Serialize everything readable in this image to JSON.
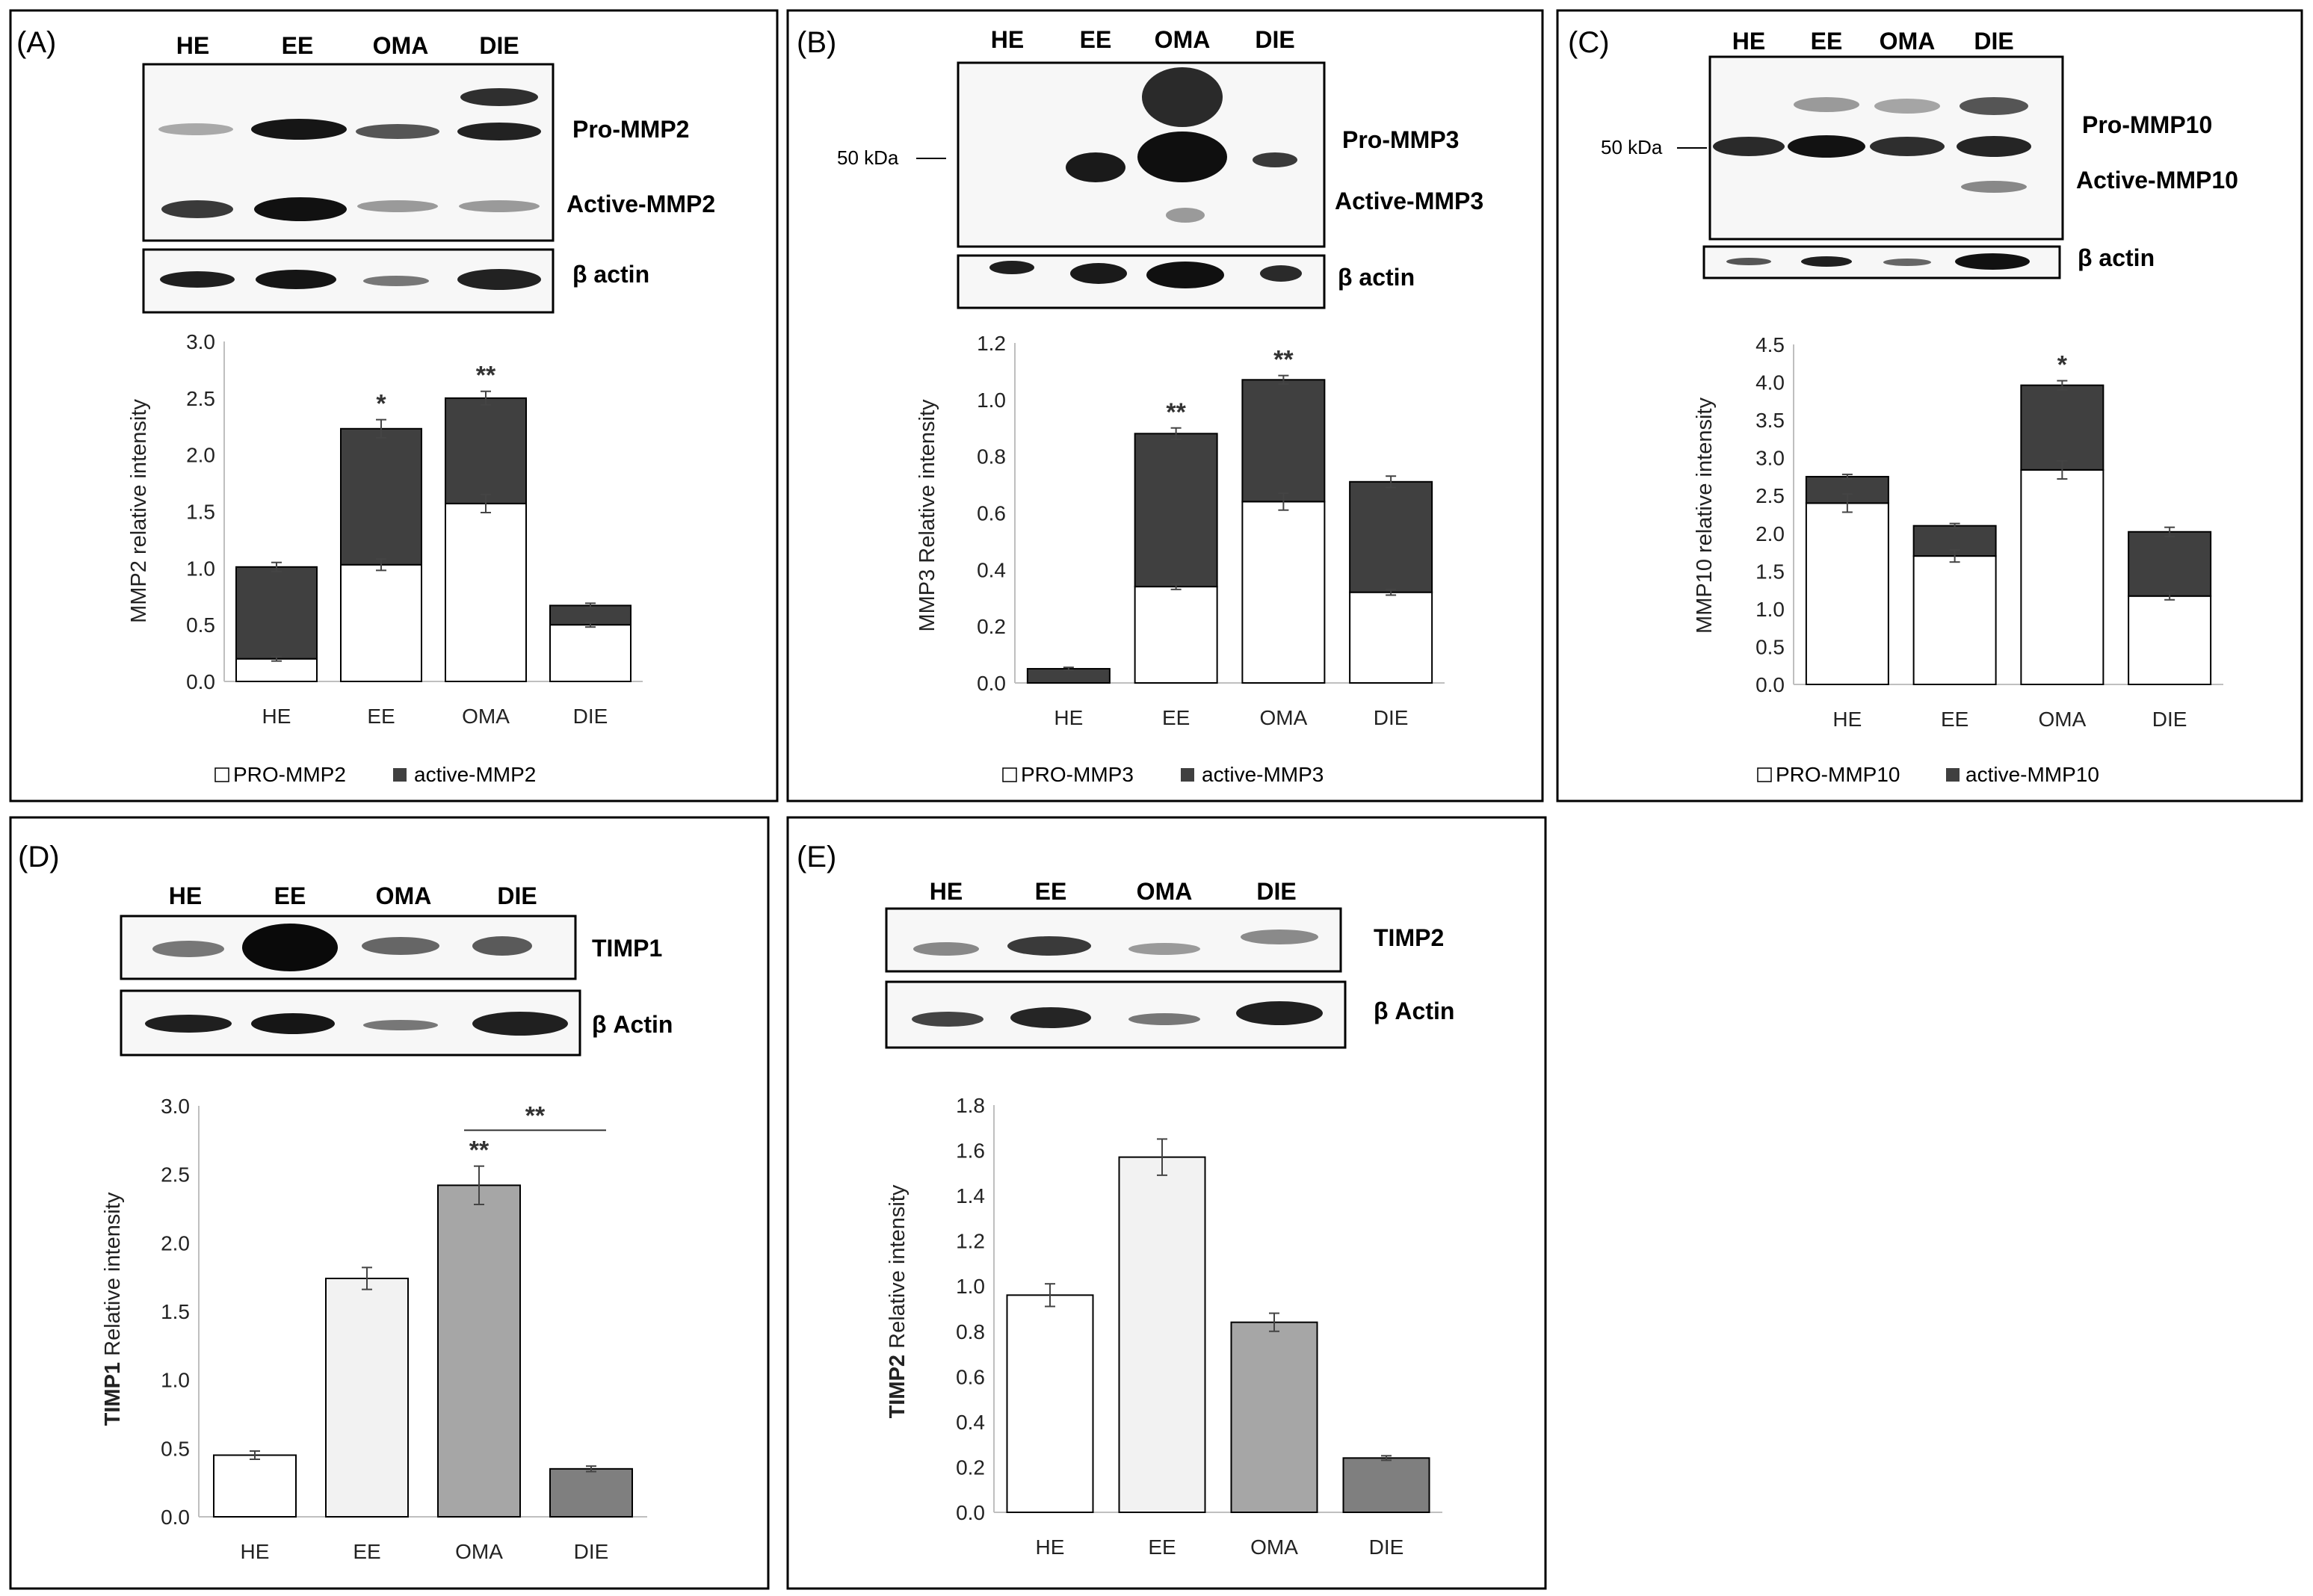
{
  "panels": [
    {
      "label": "(A)",
      "blot": {
        "lanes": [
          "HE",
          "EE",
          "OMA",
          "DIE"
        ],
        "band_labels": [
          "Pro-MMP2",
          "Active-MMP2"
        ],
        "loading_label": "β actin"
      },
      "legend": [
        "PRO-MMP2",
        "active-MMP2"
      ],
      "chart_data": {
        "type": "bar",
        "stacked": true,
        "categories": [
          "HE",
          "EE",
          "OMA",
          "DIE"
        ],
        "ylabel": "MMP2 relative intensity",
        "ylim": [
          0,
          3.0
        ],
        "yticks": [
          "0.0",
          "0.5",
          "1.0",
          "1.5",
          "2.0",
          "2.5",
          "3.0"
        ],
        "series": [
          {
            "name": "PRO-MMP2",
            "values": [
              0.2,
              1.03,
              1.57,
              0.5
            ],
            "errors": [
              0.02,
              0.05,
              0.08,
              0.02
            ],
            "color": "#ffffff"
          },
          {
            "name": "active-MMP2",
            "values": [
              0.81,
              1.2,
              0.93,
              0.17
            ],
            "errors": [
              0.04,
              0.08,
              0.06,
              0.02
            ],
            "color": "#404040"
          }
        ],
        "annotations": [
          "",
          "*",
          "**",
          ""
        ]
      }
    },
    {
      "label": "(B)",
      "blot": {
        "lanes": [
          "HE",
          "EE",
          "OMA",
          "DIE"
        ],
        "band_labels": [
          "Pro-MMP3",
          "Active-MMP3"
        ],
        "loading_label": "β actin",
        "marker": "50 kDa"
      },
      "legend": [
        "PRO-MMP3",
        "active-MMP3"
      ],
      "chart_data": {
        "type": "bar",
        "stacked": true,
        "categories": [
          "HE",
          "EE",
          "OMA",
          "DIE"
        ],
        "ylabel": "MMP3 Relative intensity",
        "ylim": [
          0,
          1.2
        ],
        "yticks": [
          "0.0",
          "0.2",
          "0.4",
          "0.6",
          "0.8",
          "1.0",
          "1.2"
        ],
        "series": [
          {
            "name": "PRO-MMP3",
            "values": [
              0,
              0.34,
              0.64,
              0.32
            ],
            "errors": [
              0,
              0.01,
              0.03,
              0.01
            ],
            "color": "#ffffff"
          },
          {
            "name": "active-MMP3",
            "values": [
              0.05,
              0.54,
              0.43,
              0.39
            ],
            "errors": [
              0.005,
              0.02,
              0.015,
              0.02
            ],
            "color": "#404040"
          }
        ],
        "annotations": [
          "",
          "**",
          "**",
          ""
        ]
      }
    },
    {
      "label": "(C)",
      "blot": {
        "lanes": [
          "HE",
          "EE",
          "OMA",
          "DIE"
        ],
        "band_labels": [
          "Pro-MMP10",
          "Active-MMP10"
        ],
        "loading_label": "β actin",
        "marker": "50 kDa"
      },
      "legend": [
        "PRO-MMP10",
        "active-MMP10"
      ],
      "chart_data": {
        "type": "bar",
        "stacked": true,
        "categories": [
          "HE",
          "EE",
          "OMA",
          "DIE"
        ],
        "ylabel": "MMP10 relative intensity",
        "ylim": [
          0,
          4.5
        ],
        "yticks": [
          "0.0",
          "0.5",
          "1.0",
          "1.5",
          "2.0",
          "2.5",
          "3.0",
          "3.5",
          "4.0",
          "4.5"
        ],
        "series": [
          {
            "name": "PRO-MMP10",
            "values": [
              2.4,
              1.7,
              2.84,
              1.17
            ],
            "errors": [
              0.12,
              0.08,
              0.12,
              0.05
            ],
            "color": "#ffffff"
          },
          {
            "name": "active-MMP10",
            "values": [
              0.35,
              0.4,
              1.12,
              0.85
            ],
            "errors": [
              0.03,
              0.03,
              0.06,
              0.06
            ],
            "color": "#404040"
          }
        ],
        "annotations": [
          "",
          "",
          "*",
          ""
        ]
      }
    },
    {
      "label": "(D)",
      "blot": {
        "lanes": [
          "HE",
          "EE",
          "OMA",
          "DIE"
        ],
        "band_labels": [
          "TIMP1"
        ],
        "loading_label": "β Actin"
      },
      "legend": [],
      "chart_data": {
        "type": "bar",
        "stacked": false,
        "categories": [
          "HE",
          "EE",
          "OMA",
          "DIE"
        ],
        "ylabel_bold": "TIMP1",
        "ylabel": "Relative intensity",
        "ylim": [
          0,
          3.0
        ],
        "yticks": [
          "0.0",
          "0.5",
          "1.0",
          "1.5",
          "2.0",
          "2.5",
          "3.0"
        ],
        "values": [
          0.45,
          1.74,
          2.42,
          0.35
        ],
        "errors": [
          0.03,
          0.08,
          0.14,
          0.02
        ],
        "colors": [
          "#ffffff",
          "#f2f2f2",
          "#a6a6a6",
          "#7f7f7f"
        ],
        "annotations": [
          "",
          "",
          "**",
          ""
        ],
        "bracket": {
          "from": "OMA",
          "to": "DIE",
          "label": "**"
        }
      }
    },
    {
      "label": "(E)",
      "blot": {
        "lanes": [
          "HE",
          "EE",
          "OMA",
          "DIE"
        ],
        "band_labels": [
          "TIMP2"
        ],
        "loading_label": "β Actin"
      },
      "legend": [],
      "chart_data": {
        "type": "bar",
        "stacked": false,
        "categories": [
          "HE",
          "EE",
          "OMA",
          "DIE"
        ],
        "ylabel_bold": "TIMP2",
        "ylabel": "Relative intensity",
        "ylim": [
          0,
          1.8
        ],
        "yticks": [
          "0.0",
          "0.2",
          "0.4",
          "0.6",
          "0.8",
          "1.0",
          "1.2",
          "1.4",
          "1.6",
          "1.8"
        ],
        "values": [
          0.96,
          1.57,
          0.84,
          0.24
        ],
        "errors": [
          0.05,
          0.08,
          0.04,
          0.01
        ],
        "colors": [
          "#ffffff",
          "#f2f2f2",
          "#a6a6a6",
          "#7f7f7f"
        ],
        "annotations": [
          "",
          "",
          "",
          ""
        ]
      }
    }
  ]
}
